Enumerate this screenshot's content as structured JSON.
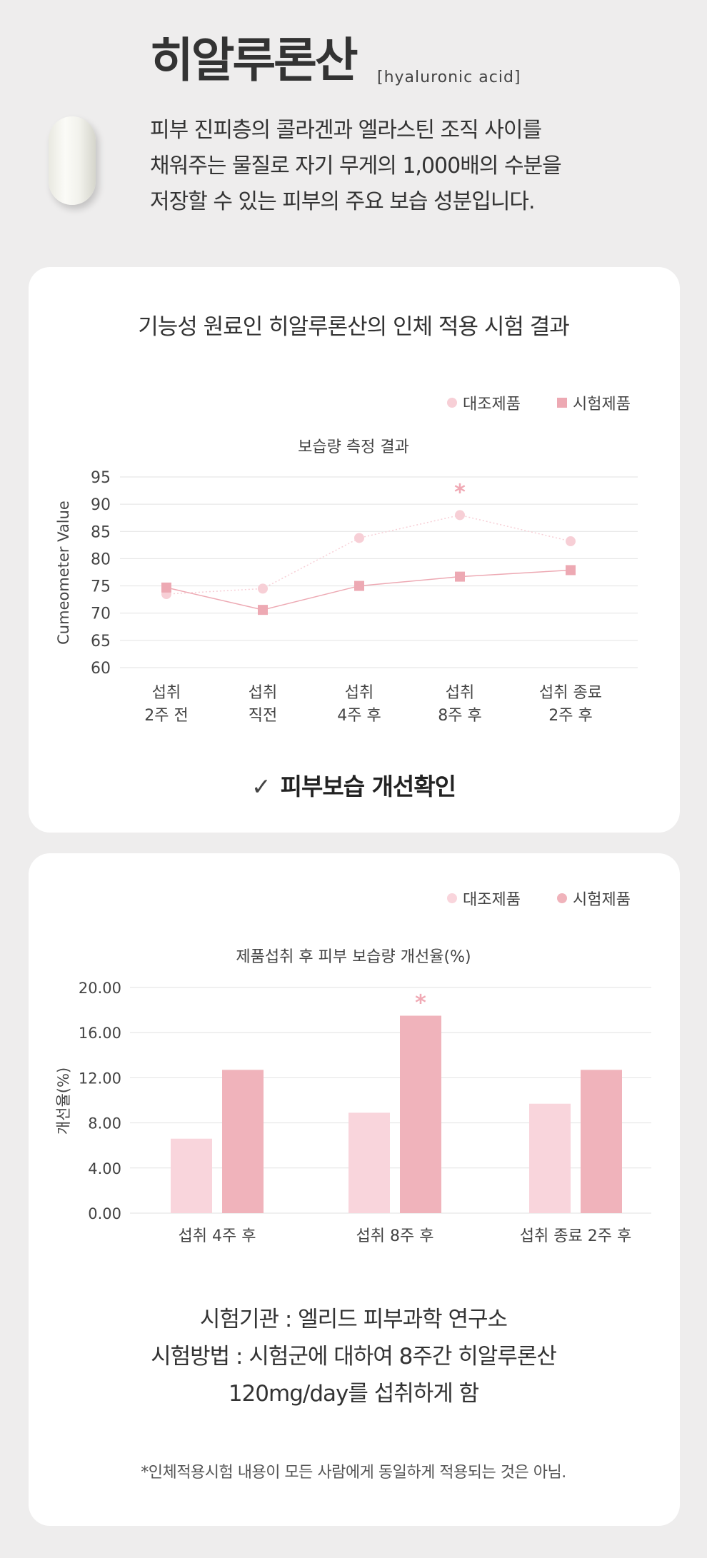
{
  "header": {
    "title": "히알루론산",
    "subtitle": "[hyaluronic acid]",
    "description": [
      "피부 진피층의 콜라겐과 엘라스틴 조직 사이를",
      "채워주는 물질로 자기 무게의 1,000배의 수분을",
      "저장할 수 있는 피부의 주요 보습 성분입니다."
    ]
  },
  "card1": {
    "title": "기능성 원료인 히알루론산의  인체 적용 시험 결과",
    "check_icon": "✓",
    "conclusion": "피부보습 개선확인"
  },
  "card2": {
    "info_lines": [
      "시험기관 : 엘리드 피부과학 연구소",
      "시험방법 : 시험군에 대하여 8주간 히알루론산",
      "120mg/day를 섭취하게 함"
    ],
    "footnote": "*인체적용시험 내용이 모든 사람에게 동일하게 적용되는 것은 아님."
  },
  "colors": {
    "control": "#f9d5dc",
    "test": "#f0b3bb",
    "control_marker": "#f7cfd6",
    "test_marker": "#eda9b3",
    "asterisk": "#f0a9b4",
    "grid": "#e2e2e2"
  },
  "chart_data": [
    {
      "type": "line",
      "title": "보습량 측정 결과",
      "ylabel": "Cumeometer Value",
      "xlabel": "",
      "ylim": [
        60,
        95
      ],
      "yticks": [
        95,
        90,
        85,
        80,
        75,
        70,
        65,
        60
      ],
      "categories": [
        [
          "섭취",
          "2주 전"
        ],
        [
          "섭취",
          "직전"
        ],
        [
          "섭취",
          "4주 후"
        ],
        [
          "섭취",
          "8주 후"
        ],
        [
          "섭취 종료",
          "2주 후"
        ]
      ],
      "series": [
        {
          "name": "대조제품",
          "marker": "circle",
          "values": [
            73.5,
            74.5,
            83.8,
            88.0,
            83.2
          ]
        },
        {
          "name": "시험제품",
          "marker": "square",
          "values": [
            74.7,
            70.6,
            75.0,
            76.7,
            77.9
          ]
        }
      ],
      "annotations": [
        {
          "category_index": 3,
          "text": "*"
        }
      ],
      "legend_position": "top-right",
      "grid": true
    },
    {
      "type": "bar",
      "title": "제품섭취 후 피부 보습량 개선율(%)",
      "ylabel": "개선율(%)",
      "xlabel": "",
      "ylim": [
        0,
        20
      ],
      "yticks": [
        "20.00",
        "16.00",
        "12.00",
        "8.00",
        "4.00",
        "0.00"
      ],
      "categories": [
        "섭취 4주 후",
        "섭취 8주 후",
        "섭취 종료 2주 후"
      ],
      "series": [
        {
          "name": "대조제품",
          "values": [
            6.6,
            8.9,
            9.7
          ]
        },
        {
          "name": "시험제품",
          "values": [
            12.7,
            17.5,
            12.7
          ]
        }
      ],
      "annotations": [
        {
          "category_index": 1,
          "text": "*"
        }
      ],
      "legend_position": "top-right",
      "grid": true
    }
  ]
}
